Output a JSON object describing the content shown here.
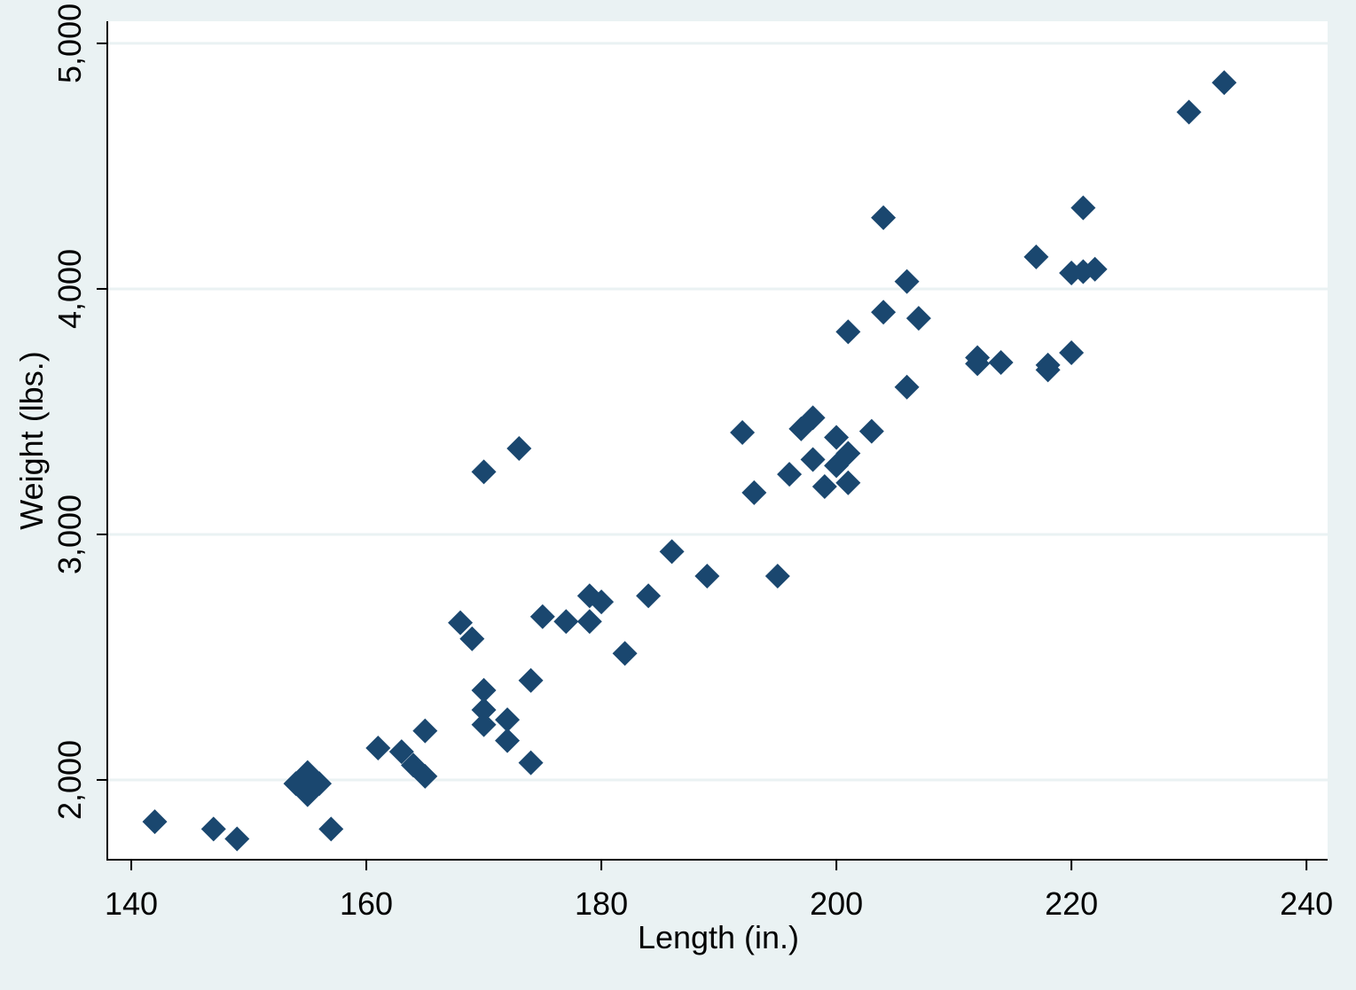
{
  "chart_data": {
    "type": "scatter",
    "x_label": "Length (in.)",
    "y_label": "Weight (lbs.)",
    "color": "#1a476f",
    "grid": true,
    "xlim": [
      137.96,
      241.8
    ],
    "ylim": [
      1675,
      5090
    ],
    "xticks": [
      140,
      160,
      180,
      200,
      220,
      240
    ],
    "yticks": [
      {
        "value": 2000,
        "label": "2,000"
      },
      {
        "value": 3000,
        "label": "3,000"
      },
      {
        "value": 4000,
        "label": "4,000"
      },
      {
        "value": 5000,
        "label": "5,000"
      }
    ],
    "x": [
      142,
      147,
      149,
      154,
      155,
      155,
      156,
      157,
      161,
      163,
      164,
      165,
      165,
      168,
      169,
      170,
      170,
      170,
      170,
      172,
      172,
      173,
      174,
      174,
      175,
      177,
      179,
      179,
      180,
      182,
      184,
      186,
      189,
      192,
      193,
      195,
      196,
      197,
      198,
      198,
      199,
      200,
      200,
      201,
      201,
      201,
      203,
      204,
      204,
      206,
      206,
      207,
      212,
      212,
      214,
      217,
      218,
      218,
      220,
      220,
      221,
      221,
      222,
      230,
      233
    ],
    "values": [
      1830,
      1800,
      1760,
      1985,
      2030,
      1940,
      1985,
      1800,
      2130,
      2115,
      2060,
      2015,
      2200,
      2640,
      2575,
      3255,
      2365,
      2285,
      2225,
      2245,
      2160,
      3350,
      2405,
      2070,
      2665,
      2645,
      2750,
      2645,
      2725,
      2515,
      2750,
      2930,
      2830,
      3415,
      3170,
      2830,
      3245,
      3430,
      3475,
      3305,
      3195,
      3395,
      3280,
      3330,
      3210,
      3825,
      3420,
      4290,
      3905,
      4030,
      3600,
      3880,
      3720,
      3695,
      3700,
      4130,
      3690,
      3670,
      4065,
      3740,
      4330,
      4070,
      4080,
      4720,
      4840
    ]
  }
}
